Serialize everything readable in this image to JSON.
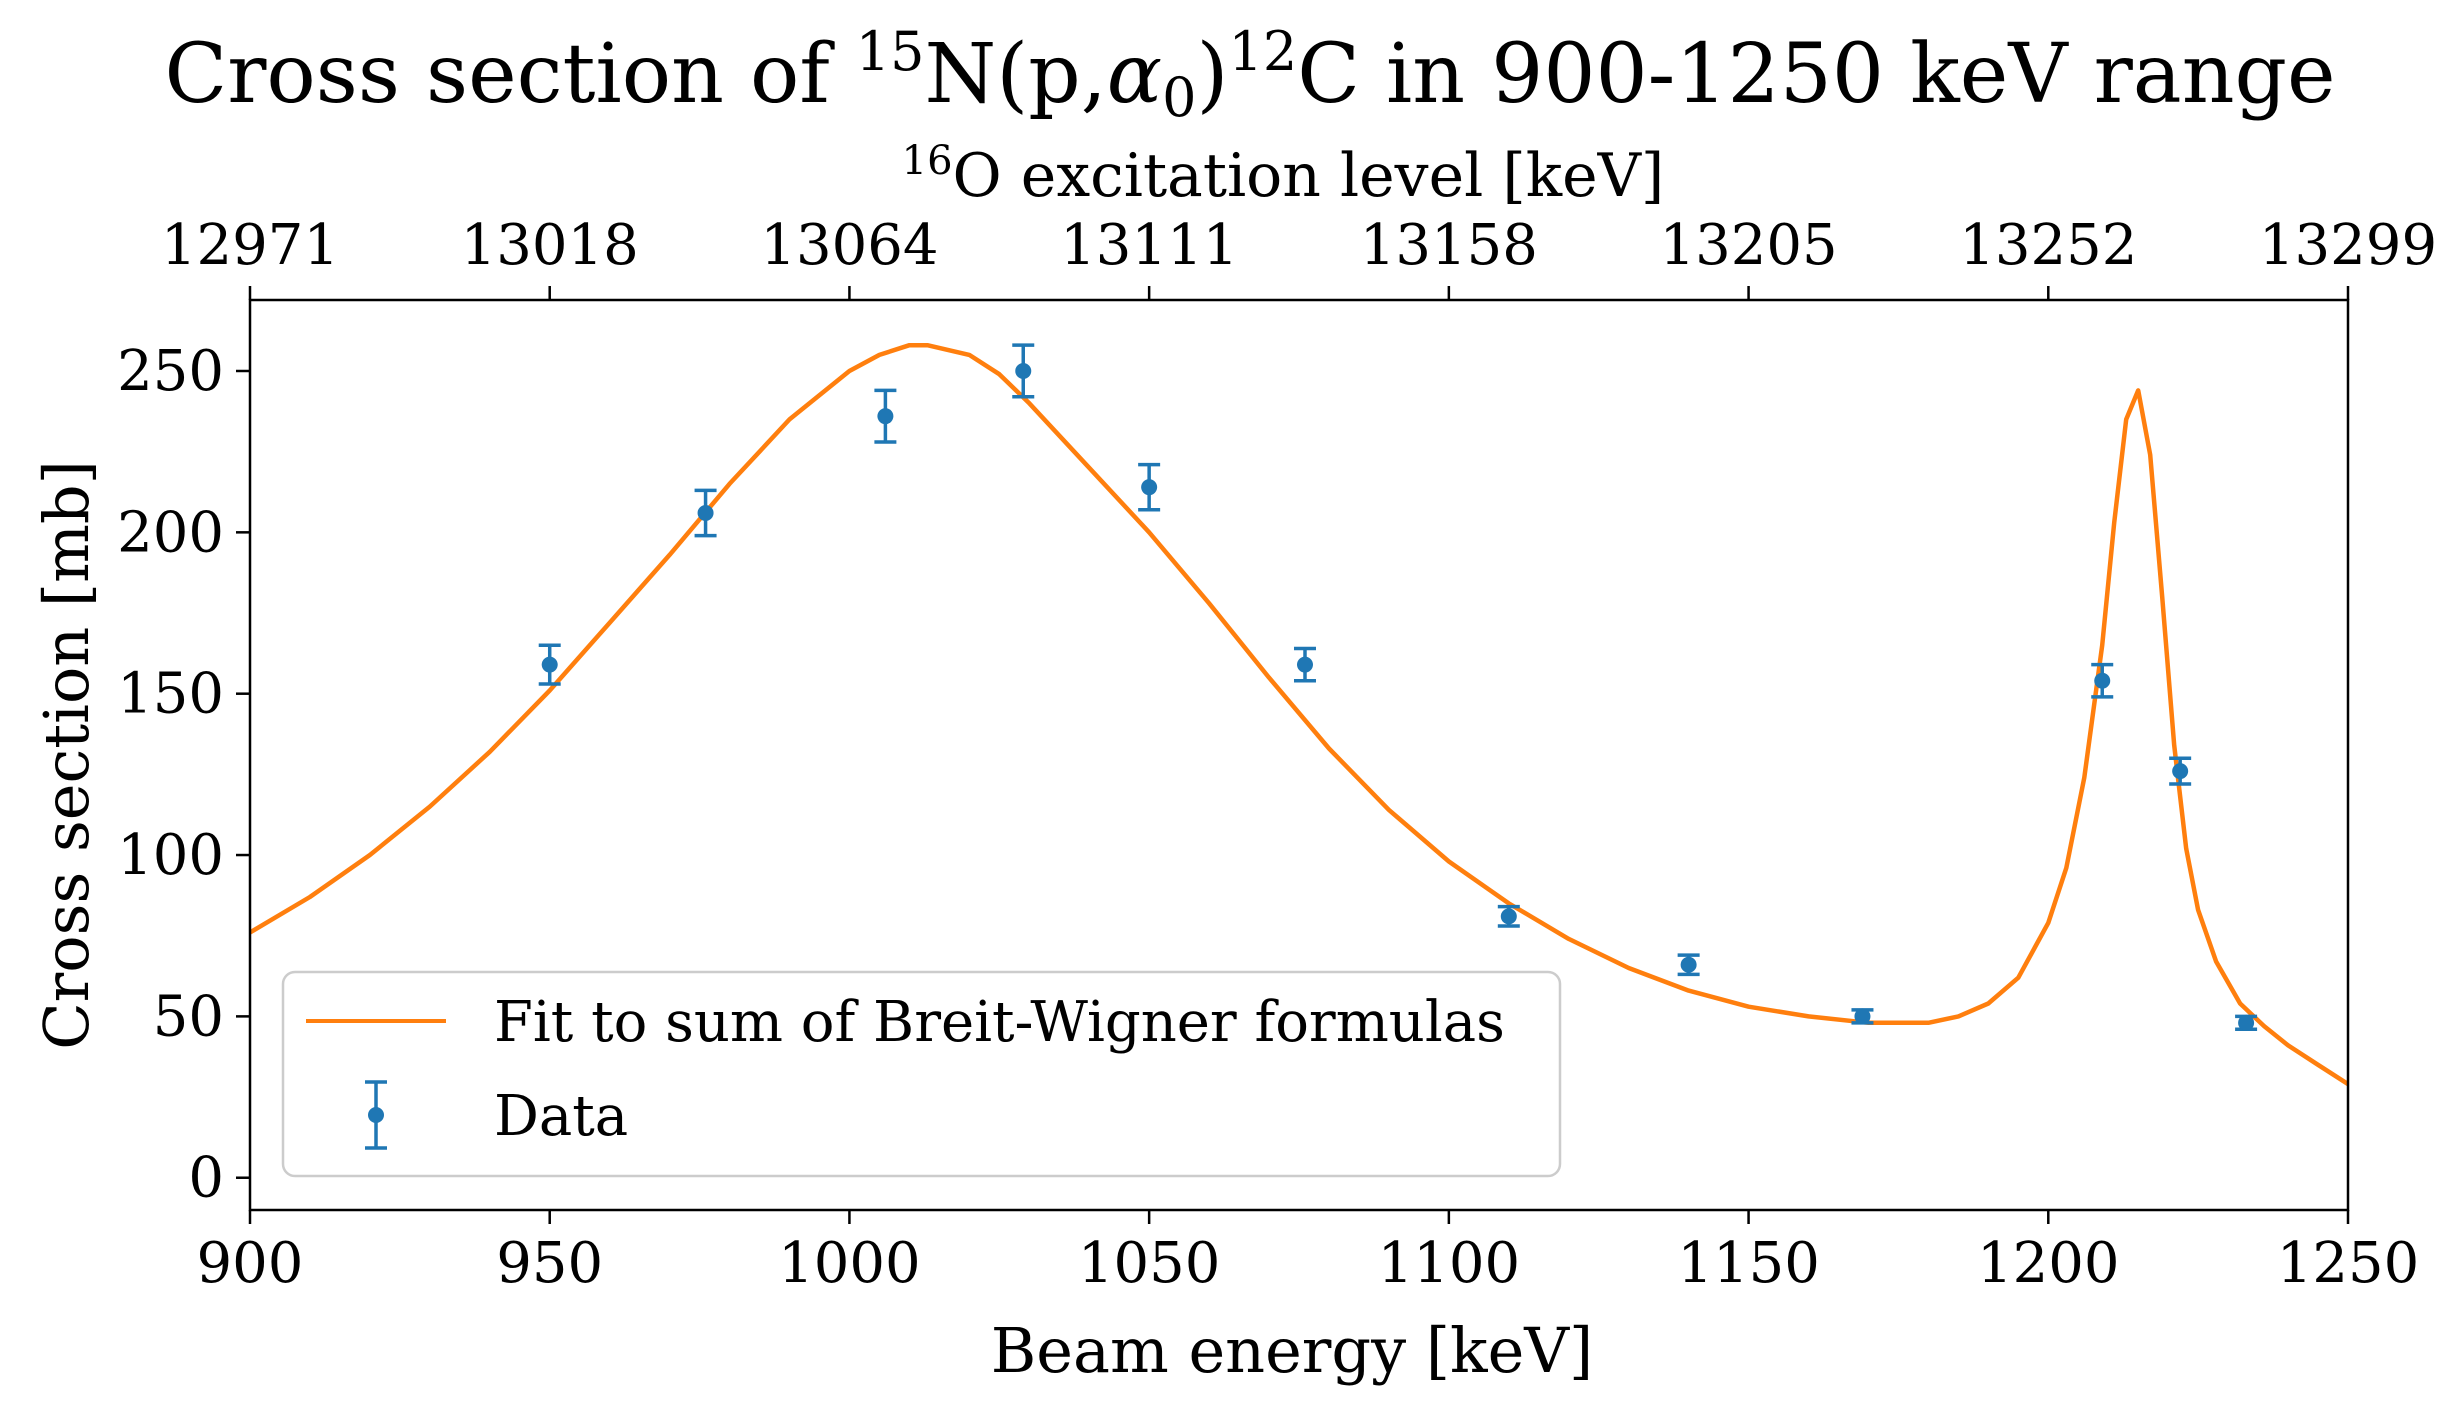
{
  "chart_data": {
    "type": "scatter",
    "title": "Cross section of ¹⁵N(p,α₀)¹²C in 900-1250 keV range",
    "title_parts": {
      "pre": "Cross section of ",
      "sup1": "15",
      "mid1": "N(p,",
      "alpha": "α",
      "sub": "0",
      "mid2": ")",
      "sup2": "12",
      "post": "C in 900-1250 keV range"
    },
    "xlabel": "Beam energy [keV]",
    "ylabel": "Cross section [mb]",
    "secondary_xlabel": "¹⁶O excitation level [keV]",
    "secondary_xlabel_parts": {
      "sup": "16",
      "text": "O excitation level [keV]"
    },
    "xlim": [
      900,
      1250
    ],
    "ylim": [
      -10,
      272
    ],
    "x_ticks": [
      900,
      950,
      1000,
      1050,
      1100,
      1150,
      1200,
      1250
    ],
    "x_tick_labels": [
      "900",
      "950",
      "1000",
      "1050",
      "1100",
      "1150",
      "1200",
      "1250"
    ],
    "y_ticks": [
      0,
      50,
      100,
      150,
      200,
      250
    ],
    "y_tick_labels": [
      "0",
      "50",
      "100",
      "150",
      "200",
      "250"
    ],
    "top_ticks": [
      900,
      950,
      1000,
      1050,
      1100,
      1150,
      1200,
      1250
    ],
    "top_tick_labels": [
      "12971",
      "13018",
      "13064",
      "13111",
      "13158",
      "13205",
      "13252",
      "13299"
    ],
    "grid": false,
    "legend_position": "lower-left",
    "series": [
      {
        "name": "Fit to sum of Breit-Wigner formulas",
        "kind": "line",
        "color": "#ff7f0e",
        "x": [
          900,
          910,
          920,
          930,
          940,
          950,
          960,
          970,
          980,
          990,
          1000,
          1005,
          1010,
          1013,
          1020,
          1025,
          1030,
          1040,
          1050,
          1060,
          1070,
          1080,
          1090,
          1100,
          1110,
          1120,
          1130,
          1140,
          1150,
          1160,
          1170,
          1175,
          1180,
          1185,
          1190,
          1195,
          1200,
          1203,
          1206,
          1209,
          1211,
          1213,
          1215,
          1217,
          1219,
          1221,
          1223,
          1225,
          1228,
          1232,
          1236,
          1240,
          1245,
          1250
        ],
        "y": [
          76,
          87,
          100,
          115,
          132,
          151,
          172,
          193,
          215,
          235,
          250,
          255,
          258,
          258,
          255,
          249,
          240,
          220,
          200,
          178,
          155,
          133,
          114,
          98,
          85,
          74,
          65,
          58,
          53,
          50,
          48,
          48,
          48,
          50,
          54,
          62,
          79,
          96,
          124,
          165,
          203,
          235,
          244,
          224,
          180,
          134,
          102,
          83,
          67,
          54,
          47,
          41,
          35,
          29
        ]
      },
      {
        "name": "Data",
        "kind": "errorbar",
        "color": "#1f77b4",
        "x": [
          950,
          976,
          1006,
          1029,
          1050,
          1076,
          1110,
          1140,
          1169,
          1209,
          1222,
          1233
        ],
        "y": [
          159,
          206,
          236,
          250,
          214,
          159,
          81,
          66,
          50,
          154,
          126,
          48
        ],
        "yerr": [
          6,
          7,
          8,
          8,
          7,
          5,
          3,
          3,
          2,
          5,
          4,
          2
        ]
      }
    ]
  }
}
